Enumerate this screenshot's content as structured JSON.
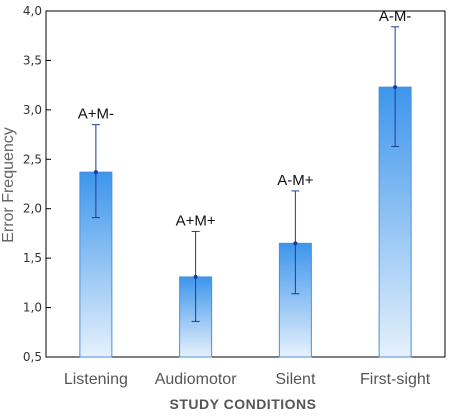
{
  "chart_data": {
    "type": "bar",
    "categories": [
      "Listening",
      "Audiomotor",
      "Silent",
      "First-sight"
    ],
    "values": [
      2.37,
      1.31,
      1.65,
      3.23
    ],
    "error_low": [
      1.91,
      0.86,
      1.14,
      2.63
    ],
    "error_high": [
      2.85,
      1.77,
      2.18,
      3.84
    ],
    "annotations": [
      "A+M-",
      "A+M+",
      "A-M+",
      "A-M-"
    ],
    "ylabel": "Error Frequency",
    "xlabel": "STUDY CONDITIONS",
    "ylim": [
      0.5,
      4.0
    ],
    "yticks": [
      "0,5",
      "1,0",
      "1,5",
      "2,0",
      "2,5",
      "3,0",
      "3,5",
      "4,0"
    ],
    "grid": false,
    "colors": {
      "bar_top": "#3d95ec",
      "bar_bottom": "#e6f1fc",
      "bar_border": "#4a90d9",
      "errorbar": "#1c3a9e",
      "axis": "#000000"
    }
  }
}
